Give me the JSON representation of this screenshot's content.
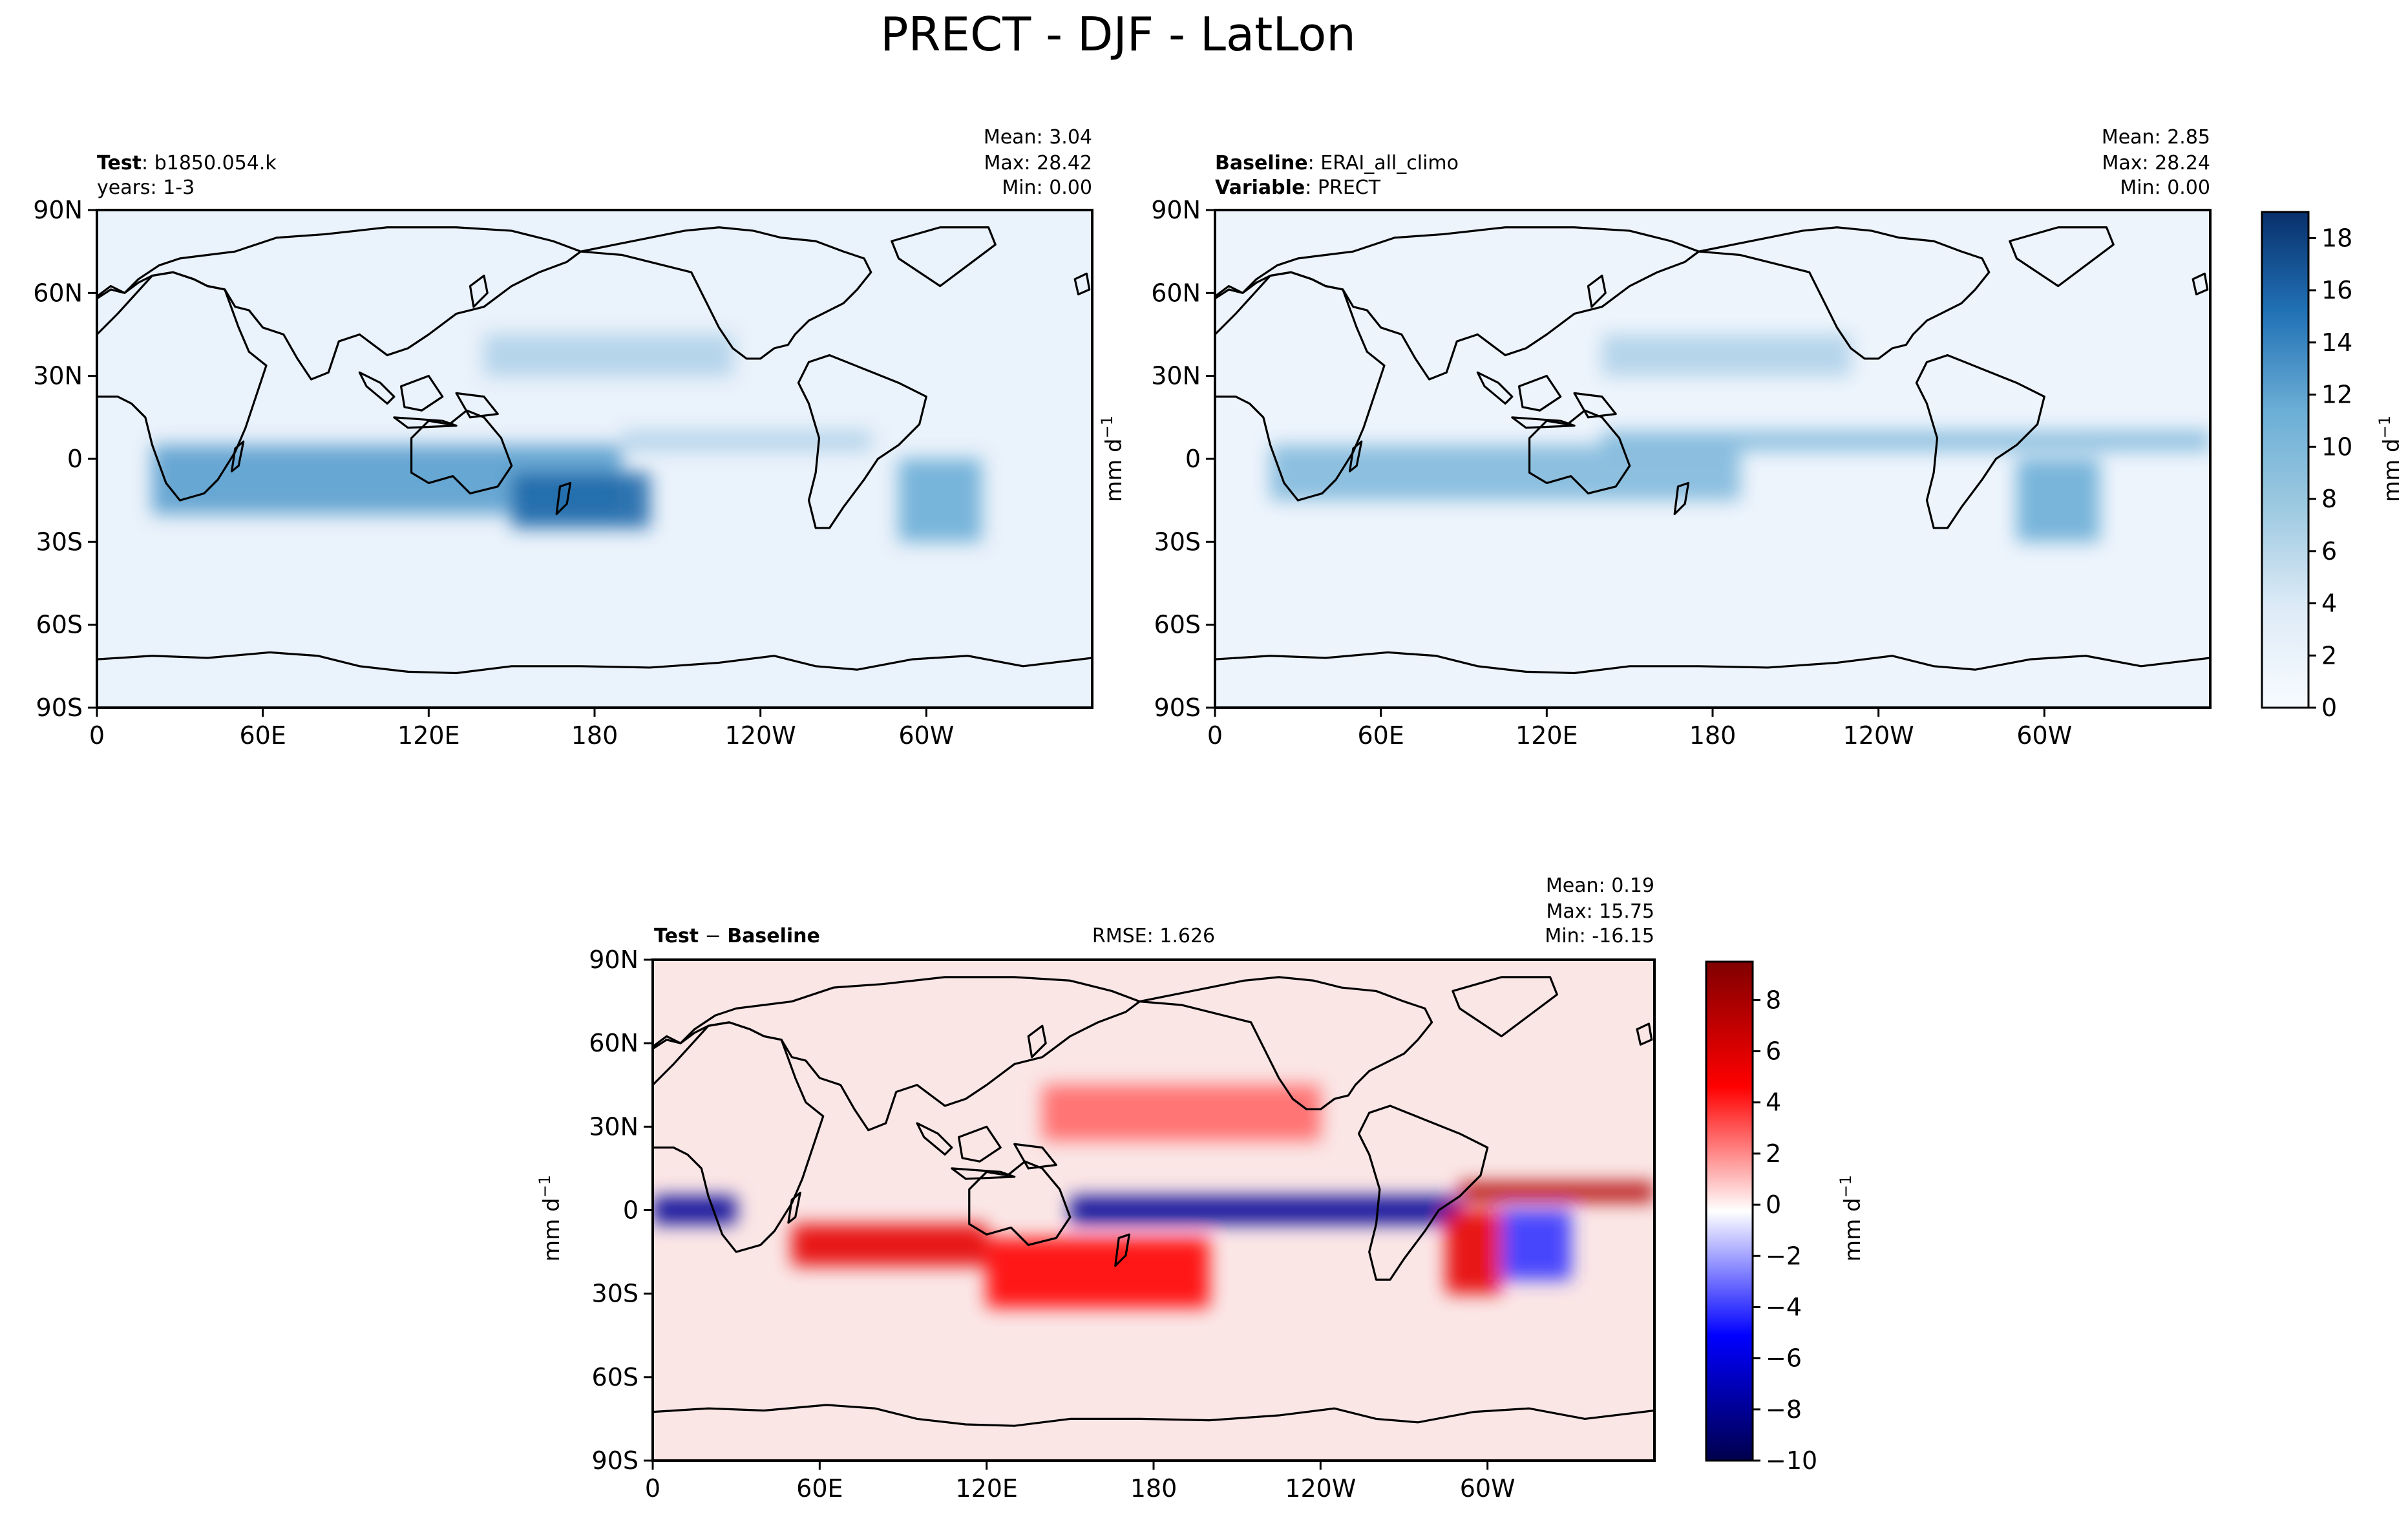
{
  "figure_title": "PRECT - DJF - LatLon",
  "units_label": "mm d",
  "units_sup": "−1",
  "chart_data": [
    {
      "type": "heatmap",
      "id": "test",
      "header_bold": "Test",
      "header_value": "b1850.054.k",
      "header_line2": "years: 1-3",
      "stats": [
        "Mean:  3.04",
        "Max: 28.42",
        "Min:  0.00"
      ],
      "x_ticks": [
        "0",
        "60E",
        "120E",
        "180",
        "120W",
        "60W"
      ],
      "y_ticks": [
        "90N",
        "60N",
        "30N",
        "0",
        "30S",
        "60S",
        "90S"
      ],
      "xlim": [
        0,
        360
      ],
      "ylim": [
        -90,
        90
      ],
      "colormap": "Blues",
      "bands": [
        {
          "lat_from": -20,
          "lat_to": 5,
          "lon_from": 20,
          "lon_to": 190,
          "value": 9
        },
        {
          "lat_from": -25,
          "lat_to": -5,
          "lon_from": 150,
          "lon_to": 200,
          "value": 13
        },
        {
          "lat_from": 30,
          "lat_to": 45,
          "lon_from": 140,
          "lon_to": 230,
          "value": 5
        },
        {
          "lat_from": 3,
          "lat_to": 10,
          "lon_from": 190,
          "lon_to": 280,
          "value": 5
        },
        {
          "lat_from": -30,
          "lat_to": 0,
          "lon_from": 290,
          "lon_to": 320,
          "value": 8
        }
      ]
    },
    {
      "type": "heatmap",
      "id": "baseline",
      "header_bold": "Baseline",
      "header_value": "ERAI_all_climo",
      "header_bold2": "Variable",
      "header_value2": "PRECT",
      "stats": [
        "Mean:  2.85",
        "Max: 28.24",
        "Min:  0.00"
      ],
      "x_ticks": [
        "0",
        "60E",
        "120E",
        "180",
        "120W",
        "60W"
      ],
      "y_ticks": [
        "90N",
        "60N",
        "30N",
        "0",
        "30S",
        "60S",
        "90S"
      ],
      "xlim": [
        0,
        360
      ],
      "ylim": [
        -90,
        90
      ],
      "colormap": "Blues",
      "colorbar_ticks": [
        0,
        2,
        4,
        6,
        8,
        10,
        12,
        14,
        16,
        18
      ],
      "colorbar_range": [
        0,
        19
      ],
      "bands": [
        {
          "lat_from": -15,
          "lat_to": 5,
          "lon_from": 20,
          "lon_to": 190,
          "value": 7
        },
        {
          "lat_from": 3,
          "lat_to": 10,
          "lon_from": 140,
          "lon_to": 360,
          "value": 7
        },
        {
          "lat_from": 30,
          "lat_to": 45,
          "lon_from": 140,
          "lon_to": 230,
          "value": 5
        },
        {
          "lat_from": -30,
          "lat_to": 0,
          "lon_from": 290,
          "lon_to": 320,
          "value": 8
        }
      ]
    },
    {
      "type": "heatmap",
      "id": "difference",
      "header_bold": "Test",
      "header_op": "−",
      "header_bold2": "Baseline",
      "rmse": "RMSE: 1.626",
      "stats": [
        "Mean:  0.19",
        "Max: 15.75",
        "Min: -16.15"
      ],
      "x_ticks": [
        "0",
        "60E",
        "120E",
        "180",
        "120W",
        "60W"
      ],
      "y_ticks": [
        "90N",
        "60N",
        "30N",
        "0",
        "30S",
        "60S",
        "90S"
      ],
      "xlim": [
        0,
        360
      ],
      "ylim": [
        -90,
        90
      ],
      "colormap": "seismic",
      "colorbar_ticks": [
        "8",
        "6",
        "4",
        "2",
        "0",
        "−2",
        "−4",
        "−6",
        "−8",
        "−10"
      ],
      "colorbar_range": [
        -10,
        9.5
      ],
      "bands": [
        {
          "lat_from": -5,
          "lat_to": 5,
          "lon_from": 150,
          "lon_to": 290,
          "value": -8
        },
        {
          "lat_from": -5,
          "lat_to": 5,
          "lon_from": 0,
          "lon_to": 30,
          "value": -8
        },
        {
          "lat_from": -20,
          "lat_to": -5,
          "lon_from": 50,
          "lon_to": 120,
          "value": 6
        },
        {
          "lat_from": -35,
          "lat_to": -10,
          "lon_from": 120,
          "lon_to": 200,
          "value": 5
        },
        {
          "lat_from": 3,
          "lat_to": 10,
          "lon_from": 290,
          "lon_to": 360,
          "value": 8
        },
        {
          "lat_from": 25,
          "lat_to": 45,
          "lon_from": 140,
          "lon_to": 240,
          "value": 3
        },
        {
          "lat_from": -30,
          "lat_to": 0,
          "lon_from": 285,
          "lon_to": 305,
          "value": 6
        },
        {
          "lat_from": -25,
          "lat_to": 0,
          "lon_from": 305,
          "lon_to": 330,
          "value": -4
        }
      ]
    }
  ]
}
